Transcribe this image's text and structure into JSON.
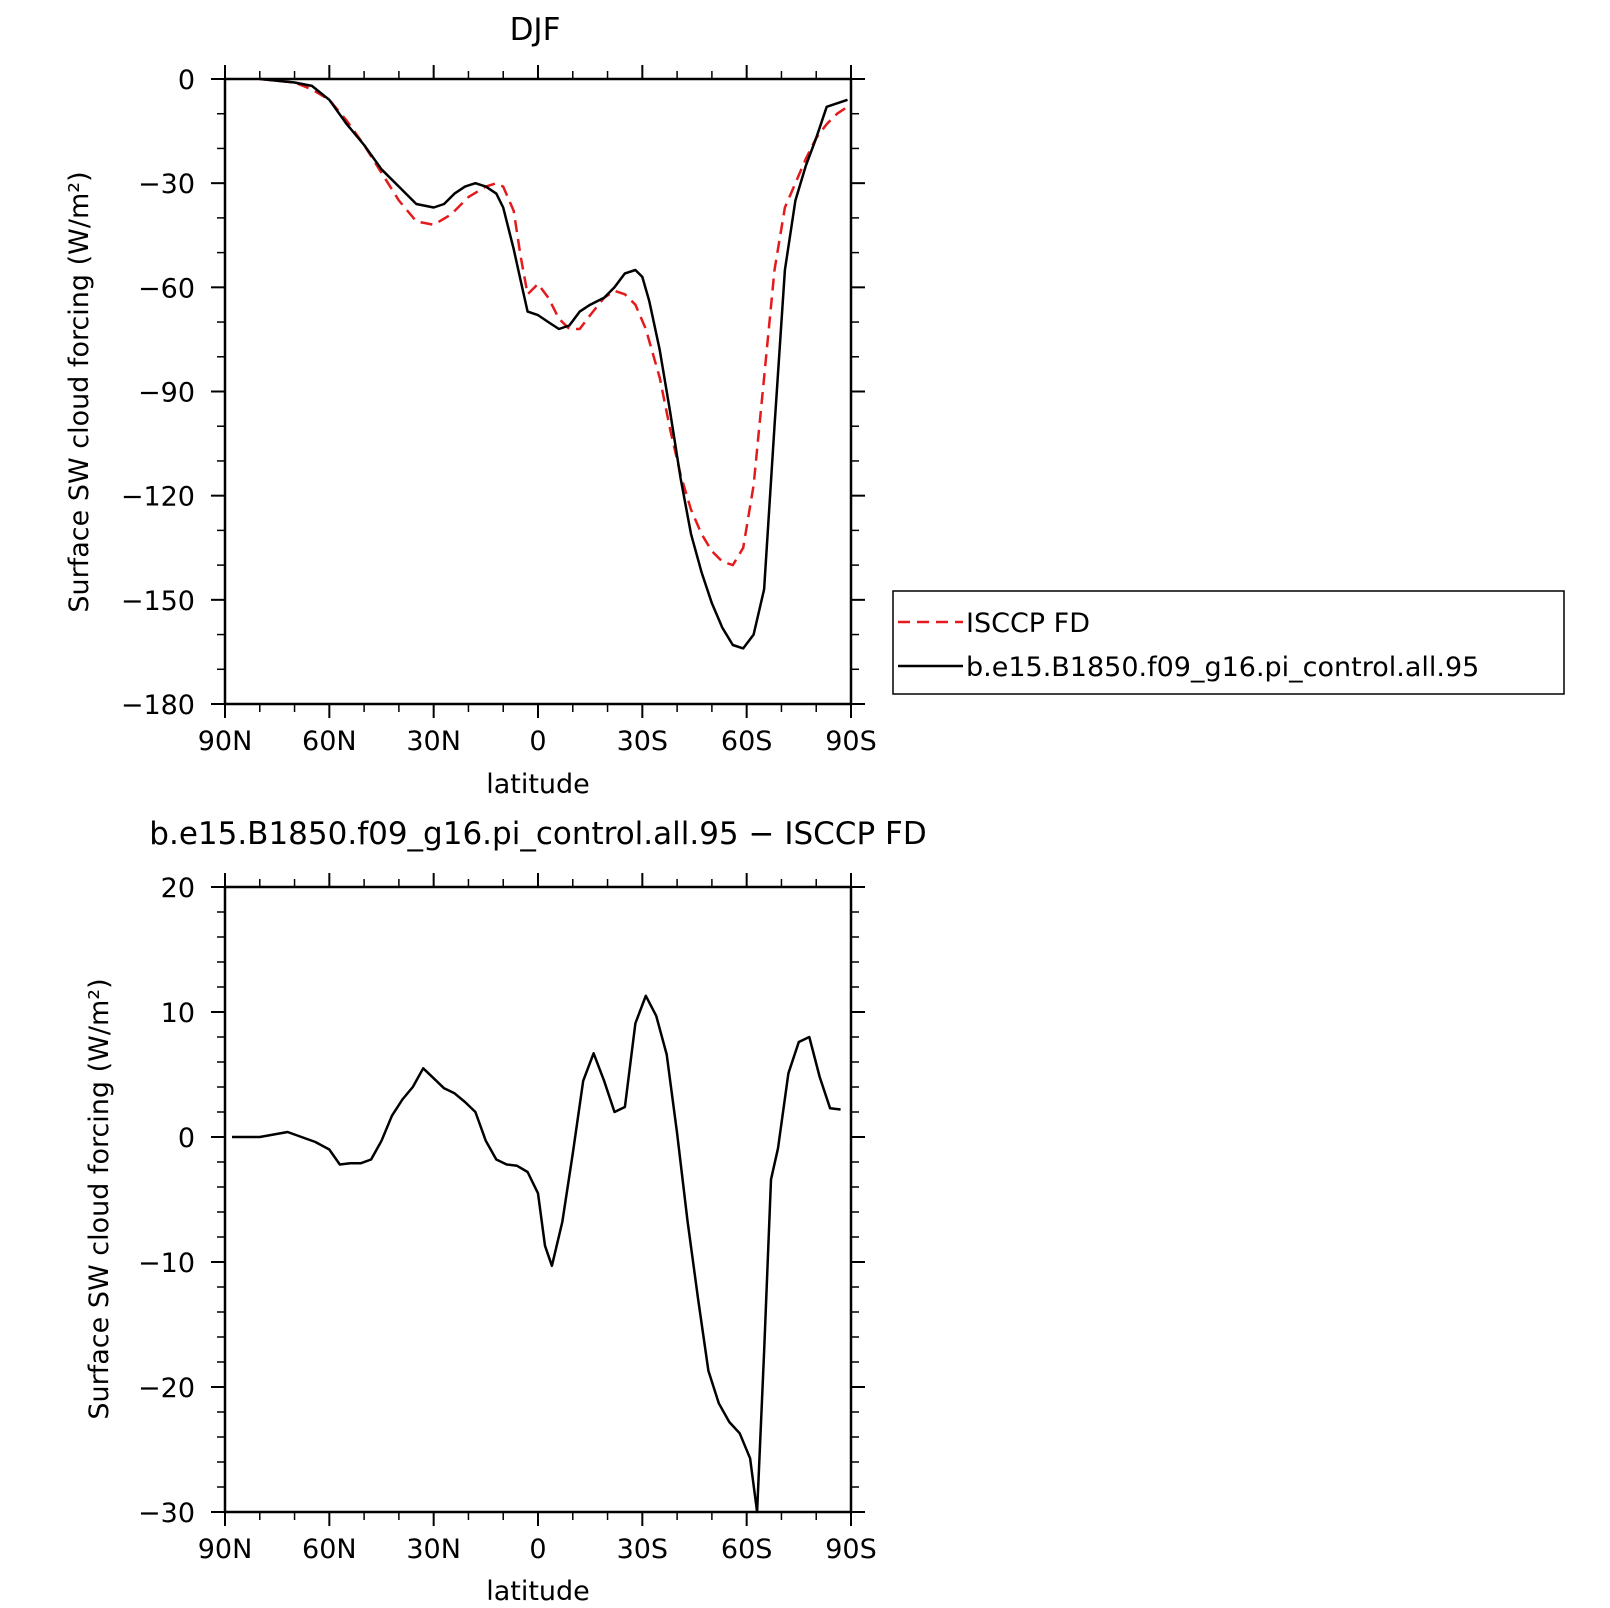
{
  "colors": {
    "isccp": "#e41a1c",
    "model": "#000000",
    "axis": "#000000",
    "background": "#ffffff"
  },
  "chart_data": [
    {
      "type": "line",
      "title": "DJF",
      "xlabel": "latitude",
      "ylabel": "Surface SW cloud forcing (W/m²)",
      "xlim": [
        90,
        -90
      ],
      "ylim": [
        -180,
        0
      ],
      "x_ticks": [
        90,
        60,
        30,
        0,
        -30,
        -60,
        -90
      ],
      "x_tick_labels": [
        "90N",
        "60N",
        "30N",
        "0",
        "30S",
        "60S",
        "90S"
      ],
      "y_ticks": [
        0,
        -30,
        -60,
        -90,
        -120,
        -150,
        -180
      ],
      "y_tick_labels": [
        "0",
        "−30",
        "−60",
        "−90",
        "−120",
        "−150",
        "−180"
      ],
      "legend_position": "right",
      "grid": false,
      "series": [
        {
          "name": "ISCCP FD",
          "style": "dashed",
          "color": "#e41a1c",
          "x": [
            80,
            75,
            70,
            65,
            60,
            55,
            50,
            45,
            40,
            35,
            30,
            25,
            20,
            15,
            12,
            10,
            7,
            5,
            3,
            0,
            -3,
            -6,
            -9,
            -12,
            -15,
            -19,
            -22,
            -25,
            -28,
            -31,
            -35,
            -38,
            -41,
            -44,
            -47,
            -50,
            -53,
            -56,
            -59,
            -62,
            -65,
            -68,
            -71,
            -74,
            -77,
            -80,
            -83,
            -86,
            -89
          ],
          "y": [
            0,
            -0.5,
            -1,
            -3,
            -6,
            -12,
            -19,
            -27,
            -35,
            -41,
            -42,
            -39,
            -34,
            -31,
            -30,
            -31,
            -38,
            -51,
            -62,
            -59,
            -63,
            -69,
            -72,
            -72,
            -68,
            -63,
            -61,
            -62,
            -65,
            -72,
            -86,
            -101,
            -114,
            -124,
            -131,
            -136,
            -139,
            -140,
            -135,
            -117,
            -86,
            -55,
            -37,
            -30,
            -23,
            -17,
            -13,
            -10,
            -8
          ]
        },
        {
          "name": "b.e15.B1850.f09_g16.pi_control.all.95",
          "style": "solid",
          "color": "#000000",
          "x": [
            80,
            75,
            70,
            65,
            60,
            55,
            50,
            45,
            40,
            35,
            30,
            27,
            24,
            21,
            18,
            15,
            12,
            10,
            7,
            5,
            3,
            0,
            -3,
            -6,
            -9,
            -12,
            -15,
            -19,
            -22,
            -25,
            -28,
            -30,
            -32,
            -35,
            -38,
            -41,
            -44,
            -47,
            -50,
            -53,
            -56,
            -59,
            -62,
            -65,
            -68,
            -71,
            -74,
            -77,
            -80,
            -83,
            -86,
            -89
          ],
          "y": [
            0,
            -0.5,
            -1,
            -2,
            -6,
            -13,
            -19,
            -26,
            -31,
            -36,
            -37,
            -36,
            -33,
            -31,
            -30,
            -31,
            -33,
            -37,
            -49,
            -58,
            -67,
            -68,
            -70,
            -72,
            -71,
            -67,
            -65,
            -63,
            -60,
            -56,
            -55,
            -57,
            -64,
            -78,
            -96,
            -115,
            -131,
            -142,
            -151,
            -158,
            -163,
            -164,
            -160,
            -147,
            -100,
            -55,
            -35,
            -25,
            -17,
            -8,
            -7,
            -6
          ]
        }
      ]
    },
    {
      "type": "line",
      "title": "b.e15.B1850.f09_g16.pi_control.all.95 − ISCCP FD",
      "xlabel": "latitude",
      "ylabel": "Surface SW cloud forcing (W/m²)",
      "xlim": [
        90,
        -90
      ],
      "ylim": [
        -30,
        20
      ],
      "x_ticks": [
        90,
        60,
        30,
        0,
        -30,
        -60,
        -90
      ],
      "x_tick_labels": [
        "90N",
        "60N",
        "30N",
        "0",
        "30S",
        "60S",
        "90S"
      ],
      "y_ticks": [
        20,
        10,
        0,
        -10,
        -20,
        -30
      ],
      "y_tick_labels": [
        "20",
        "10",
        "0",
        "−10",
        "−20",
        "−30"
      ],
      "grid": false,
      "series": [
        {
          "style": "solid",
          "color": "#000000",
          "x": [
            88,
            84,
            80,
            76,
            72,
            68,
            64,
            60,
            57,
            54,
            51,
            48,
            45,
            42,
            39,
            36,
            33,
            30,
            27,
            24,
            21,
            18,
            15,
            12,
            9,
            6,
            3,
            0,
            -2,
            -4,
            -7,
            -10,
            -13,
            -16,
            -19,
            -22,
            -25,
            -28,
            -31,
            -34,
            -37,
            -40,
            -43,
            -46,
            -49,
            -52,
            -55,
            -58,
            -61,
            -63,
            -65,
            -67,
            -69,
            -72,
            -75,
            -78,
            -81,
            -84,
            -87
          ],
          "y": [
            0,
            0,
            0,
            0.2,
            0.4,
            0,
            -0.4,
            -1,
            -2.2,
            -2.1,
            -2.1,
            -1.8,
            -0.3,
            1.7,
            3,
            4,
            5.5,
            4.7,
            3.9,
            3.5,
            2.8,
            2,
            -0.3,
            -1.8,
            -2.2,
            -2.3,
            -2.8,
            -4.5,
            -8.7,
            -10.3,
            -6.8,
            -1.3,
            4.5,
            6.7,
            4.5,
            2,
            2.4,
            9.1,
            11.3,
            9.7,
            6.6,
            0.3,
            -6.7,
            -12.9,
            -18.7,
            -21.3,
            -22.8,
            -23.7,
            -25.7,
            -30,
            -17.2,
            -3.4,
            -0.9,
            5.1,
            7.6,
            8,
            4.8,
            2.3,
            2.2
          ]
        }
      ]
    }
  ]
}
